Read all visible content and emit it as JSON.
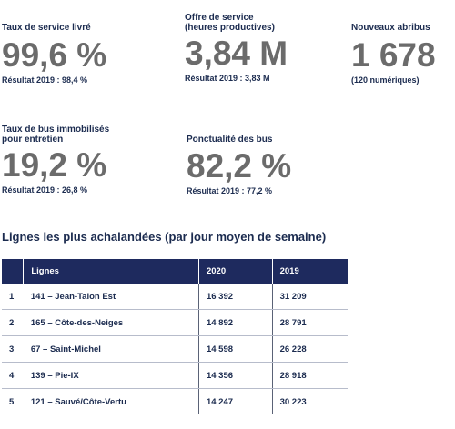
{
  "kpis": {
    "taux_service": {
      "label": "Taux de service livré",
      "value": "99,6 %",
      "result": "Résultat 2019 : 98,4 %"
    },
    "offre_service": {
      "label_line1": "Offre de service",
      "label_line2": "(heures productives)",
      "value": "3,84 M",
      "result": "Résultat 2019 : 3,83 M"
    },
    "abribus": {
      "label": "Nouveaux abribus",
      "value": "1 678",
      "note": "(120 numériques)"
    },
    "bus_immobilises": {
      "label_line1": "Taux de bus immobilisés",
      "label_line2": "pour entretien",
      "value": "19,2 %",
      "result": "Résultat 2019 : 26,8 %"
    },
    "ponctualite": {
      "label": "Ponctualité des bus",
      "value": "82,2 %",
      "result": "Résultat 2019 : 77,2 %"
    }
  },
  "table": {
    "title": "Lignes les plus achalandées (par jour moyen de semaine)",
    "headers": {
      "lignes": "Lignes",
      "y2020": "2020",
      "y2019": "2019"
    },
    "rows": [
      {
        "rank": "1",
        "name": "141 – Jean-Talon Est",
        "v2020": "16 392",
        "v2019": "31 209"
      },
      {
        "rank": "2",
        "name": "165 – Côte-des-Neiges",
        "v2020": "14 892",
        "v2019": "28 791"
      },
      {
        "rank": "3",
        "name": "67 – Saint-Michel",
        "v2020": "14 598",
        "v2019": "26 228"
      },
      {
        "rank": "4",
        "name": "139 – Pie-IX",
        "v2020": "14 356",
        "v2019": "28 918"
      },
      {
        "rank": "5",
        "name": "121 – Sauvé/Côte-Vertu",
        "v2020": "14 247",
        "v2019": "30 223"
      }
    ]
  }
}
